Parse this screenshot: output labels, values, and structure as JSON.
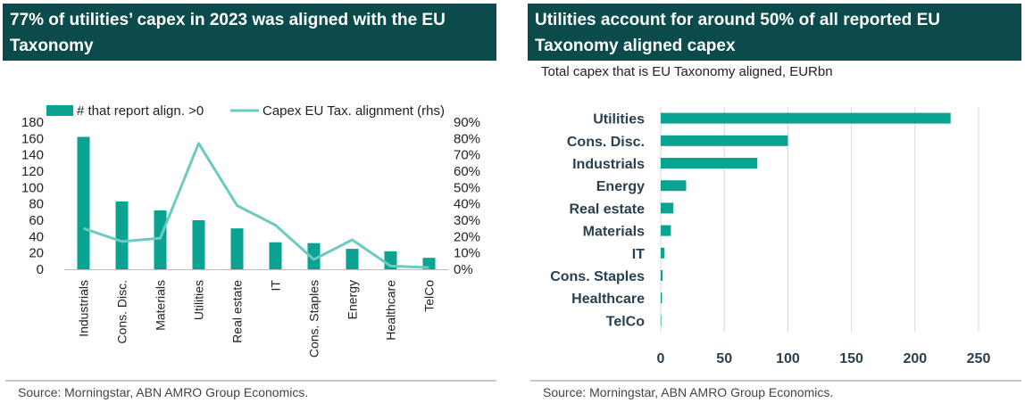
{
  "left": {
    "title": "77% of utilities’ capex in 2023 was aligned with the EU Taxonomy",
    "source": "Source: Morningstar, ABN AMRO Group Economics."
  },
  "right": {
    "title": "Utilities account for around 50% of all reported EU Taxonomy aligned capex",
    "subtitle": "Total capex that is EU Taxonomy aligned, EURbn",
    "source": "Source: Morningstar, ABN AMRO Group Economics."
  },
  "colors": {
    "teal": "#0aa391",
    "line": "#6dcac0",
    "header": "#0b4b4b"
  },
  "chart_data": [
    {
      "type": "bar",
      "categories": [
        "Industrials",
        "Cons. Disc.",
        "Materials",
        "Utilities",
        "Real estate",
        "IT",
        "Cons. Staples",
        "Energy",
        "Healthcare",
        "TelCo"
      ],
      "series": [
        {
          "name": "# that report align. >0",
          "type": "bar",
          "axis": "left",
          "values": [
            162,
            83,
            72,
            60,
            50,
            33,
            32,
            25,
            22,
            14
          ]
        },
        {
          "name": "Capex EU Tax. alignment (rhs)",
          "type": "line",
          "axis": "right",
          "values": [
            25,
            17,
            19,
            77,
            39,
            27,
            6,
            18,
            2,
            1
          ]
        }
      ],
      "ylim": [
        0,
        180
      ],
      "yticks": [
        0,
        20,
        40,
        60,
        80,
        100,
        120,
        140,
        160,
        180
      ],
      "y2lim": [
        0,
        90
      ],
      "y2ticks": [
        "0%",
        "10%",
        "20%",
        "30%",
        "40%",
        "50%",
        "60%",
        "70%",
        "80%",
        "90%"
      ],
      "legend": "top"
    },
    {
      "type": "bar",
      "orientation": "horizontal",
      "categories": [
        "Utilities",
        "Cons. Disc.",
        "Industrials",
        "Energy",
        "Real estate",
        "Materials",
        "IT",
        "Cons. Staples",
        "Healthcare",
        "TelCo"
      ],
      "values": [
        228,
        100,
        76,
        20,
        10,
        8,
        3,
        1.5,
        1,
        0.2
      ],
      "xlim": [
        0,
        250
      ],
      "xticks": [
        0,
        50,
        100,
        150,
        200,
        250
      ],
      "grid": true
    }
  ]
}
